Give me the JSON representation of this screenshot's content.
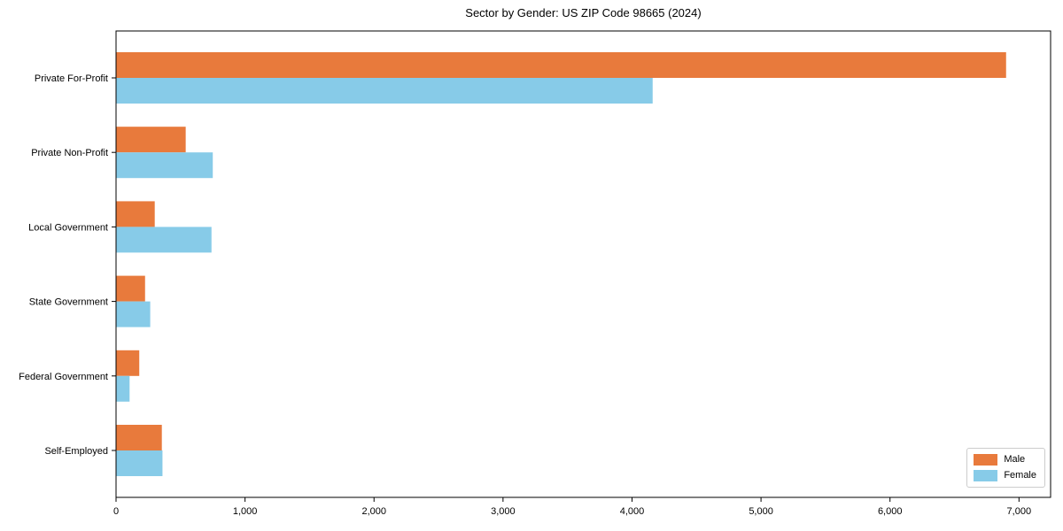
{
  "chart_data": {
    "type": "bar",
    "orientation": "horizontal",
    "title": "Sector by Gender: US ZIP Code 98665 (2024)",
    "xlabel": "",
    "ylabel": "",
    "categories": [
      "Private For-Profit",
      "Private Non-Profit",
      "Local Government",
      "State Government",
      "Federal Government",
      "Self-Employed"
    ],
    "series": [
      {
        "name": "Male",
        "color": "#E87A3C",
        "values": [
          6900,
          540,
          300,
          225,
          180,
          355
        ]
      },
      {
        "name": "Female",
        "color": "#87CBE8",
        "values": [
          4160,
          750,
          740,
          265,
          105,
          360
        ]
      }
    ],
    "xlim": [
      0,
      7245
    ],
    "xticks": {
      "values": [
        0,
        1000,
        2000,
        3000,
        4000,
        5000,
        6000,
        7000
      ],
      "labels": [
        "0",
        "1,000",
        "2,000",
        "3,000",
        "4,000",
        "5,000",
        "6,000",
        "7,000"
      ]
    },
    "grid": false,
    "legend_position": "lower right"
  },
  "colors": {
    "spine": "#000000",
    "text": "#000000",
    "legend_border": "#cccccc",
    "background": "#ffffff"
  }
}
